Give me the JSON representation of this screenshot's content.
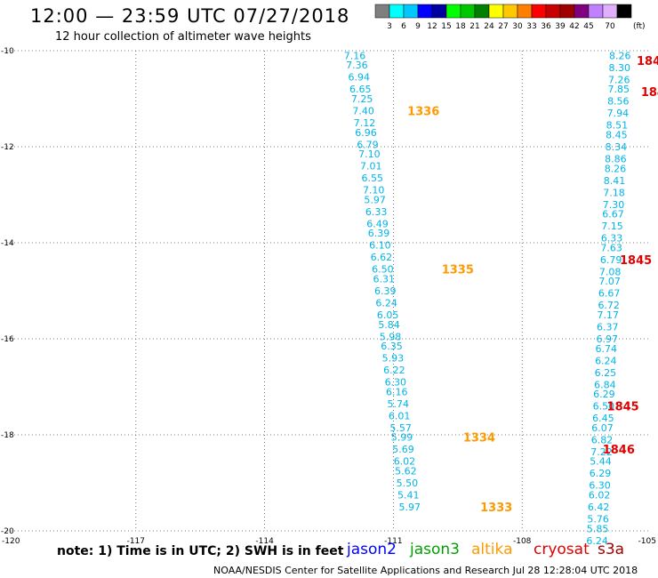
{
  "header": {
    "title": "12:00 — 23:59 UTC 07/27/2018",
    "subtitle": "12 hour collection of altimeter wave heights"
  },
  "legend": {
    "colors": [
      "#7f7f7f",
      "#00ffff",
      "#00c8ff",
      "#0000ff",
      "#0000a0",
      "#00ff00",
      "#00c800",
      "#008000",
      "#ffff00",
      "#ffc800",
      "#ff8000",
      "#ff0000",
      "#c80000",
      "#a00000",
      "#800080",
      "#c080ff",
      "#e0b0ff",
      "#000000"
    ],
    "labels": [
      "3",
      "6",
      "9",
      "12",
      "15",
      "18",
      "21",
      "24",
      "27",
      "30",
      "33",
      "36",
      "39",
      "42",
      "45",
      "70"
    ],
    "unit": "(ft)"
  },
  "footer": {
    "note": "note:  1) Time is in UTC;  2) SWH is in feet",
    "credit": "NOAA/NESDIS Center for Satellite Applications and Research     Jul 28 12:28:04 UTC 2018"
  },
  "satellites": [
    {
      "name": "jason2",
      "color": "#0000ff"
    },
    {
      "name": "jason3",
      "color": "#00a000"
    },
    {
      "name": "altika",
      "color": "#ff9900"
    },
    {
      "name": "cryosat",
      "color": "#e00000"
    },
    {
      "name": "s3a",
      "color": "#a00000"
    }
  ],
  "chart_data": {
    "type": "scatter",
    "xlim": [
      -120,
      -105
    ],
    "ylim": [
      -20,
      -10
    ],
    "x_ticks": [
      "-120",
      "-117",
      "-114",
      "-111",
      "-108",
      "-105"
    ],
    "y_ticks": [
      "-10",
      "-12",
      "-14",
      "-16",
      "-18",
      "-20"
    ],
    "grid": true,
    "series": [
      {
        "color": "#00b4e8",
        "points": [
          {
            "x": -111.9,
            "y": -10.1,
            "label": "7.16"
          },
          {
            "x": -111.85,
            "y": -10.3,
            "label": "7.36"
          },
          {
            "x": -111.8,
            "y": -10.55,
            "label": "6.94"
          },
          {
            "x": -111.77,
            "y": -10.8,
            "label": "6.65"
          },
          {
            "x": -111.73,
            "y": -11.0,
            "label": "7.25"
          },
          {
            "x": -111.7,
            "y": -11.25,
            "label": "7.40"
          },
          {
            "x": -111.67,
            "y": -11.5,
            "label": "7.12"
          },
          {
            "x": -111.64,
            "y": -11.7,
            "label": "6.96"
          },
          {
            "x": -111.6,
            "y": -11.95,
            "label": "6.79"
          },
          {
            "x": -111.56,
            "y": -12.15,
            "label": "7.10"
          },
          {
            "x": -111.52,
            "y": -12.4,
            "label": "7.01"
          },
          {
            "x": -111.49,
            "y": -12.65,
            "label": "6.55"
          },
          {
            "x": -111.46,
            "y": -12.9,
            "label": "7.10"
          },
          {
            "x": -111.43,
            "y": -13.1,
            "label": "5.97"
          },
          {
            "x": -111.4,
            "y": -13.35,
            "label": "6.33"
          },
          {
            "x": -111.37,
            "y": -13.6,
            "label": "6.49"
          },
          {
            "x": -111.34,
            "y": -13.8,
            "label": "6.39"
          },
          {
            "x": -111.31,
            "y": -14.05,
            "label": "6.10"
          },
          {
            "x": -111.28,
            "y": -14.3,
            "label": "6.62"
          },
          {
            "x": -111.25,
            "y": -14.55,
            "label": "6.50"
          },
          {
            "x": -111.22,
            "y": -14.75,
            "label": "6.31"
          },
          {
            "x": -111.19,
            "y": -15.0,
            "label": "6.39"
          },
          {
            "x": -111.16,
            "y": -15.25,
            "label": "6.24"
          },
          {
            "x": -111.13,
            "y": -15.5,
            "label": "6.05"
          },
          {
            "x": -111.1,
            "y": -15.7,
            "label": "5.84"
          },
          {
            "x": -111.07,
            "y": -15.95,
            "label": "5.98"
          },
          {
            "x": -111.04,
            "y": -16.15,
            "label": "6.35"
          },
          {
            "x": -111.01,
            "y": -16.4,
            "label": "5.93"
          },
          {
            "x": -110.98,
            "y": -16.65,
            "label": "6.22"
          },
          {
            "x": -110.95,
            "y": -16.9,
            "label": "6.30"
          },
          {
            "x": -110.92,
            "y": -17.1,
            "label": "6.16"
          },
          {
            "x": -110.89,
            "y": -17.35,
            "label": "5.74"
          },
          {
            "x": -110.86,
            "y": -17.6,
            "label": "6.01"
          },
          {
            "x": -110.83,
            "y": -17.85,
            "label": "5.57"
          },
          {
            "x": -110.8,
            "y": -18.05,
            "label": "5.99"
          },
          {
            "x": -110.77,
            "y": -18.3,
            "label": "5.69"
          },
          {
            "x": -110.74,
            "y": -18.55,
            "label": "6.02"
          },
          {
            "x": -110.71,
            "y": -18.75,
            "label": "5.62"
          },
          {
            "x": -110.68,
            "y": -19.0,
            "label": "5.50"
          },
          {
            "x": -110.65,
            "y": -19.25,
            "label": "5.41"
          },
          {
            "x": -110.62,
            "y": -19.5,
            "label": "5.97"
          },
          {
            "x": -105.72,
            "y": -10.1,
            "label": "8.26"
          },
          {
            "x": -105.73,
            "y": -10.35,
            "label": "8.30"
          },
          {
            "x": -105.74,
            "y": -10.6,
            "label": "7.26"
          },
          {
            "x": -105.75,
            "y": -10.8,
            "label": "7.85"
          },
          {
            "x": -105.76,
            "y": -11.05,
            "label": "8.56"
          },
          {
            "x": -105.77,
            "y": -11.3,
            "label": "7.94"
          },
          {
            "x": -105.79,
            "y": -11.55,
            "label": "8.51"
          },
          {
            "x": -105.8,
            "y": -11.75,
            "label": "8.45"
          },
          {
            "x": -105.81,
            "y": -12.0,
            "label": "8.34"
          },
          {
            "x": -105.82,
            "y": -12.25,
            "label": "8.86"
          },
          {
            "x": -105.83,
            "y": -12.45,
            "label": "8.26"
          },
          {
            "x": -105.85,
            "y": -12.7,
            "label": "8.41"
          },
          {
            "x": -105.86,
            "y": -12.95,
            "label": "7.18"
          },
          {
            "x": -105.87,
            "y": -13.2,
            "label": "7.30"
          },
          {
            "x": -105.88,
            "y": -13.4,
            "label": "6.67"
          },
          {
            "x": -105.9,
            "y": -13.65,
            "label": "7.15"
          },
          {
            "x": -105.91,
            "y": -13.9,
            "label": "6.33"
          },
          {
            "x": -105.92,
            "y": -14.1,
            "label": "7.63"
          },
          {
            "x": -105.93,
            "y": -14.35,
            "label": "6.79"
          },
          {
            "x": -105.95,
            "y": -14.6,
            "label": "7.08"
          },
          {
            "x": -105.96,
            "y": -14.8,
            "label": "7.07"
          },
          {
            "x": -105.97,
            "y": -15.05,
            "label": "6.67"
          },
          {
            "x": -105.98,
            "y": -15.3,
            "label": "6.72"
          },
          {
            "x": -106.0,
            "y": -15.5,
            "label": "7.17"
          },
          {
            "x": -106.01,
            "y": -15.75,
            "label": "6.37"
          },
          {
            "x": -106.02,
            "y": -16.0,
            "label": "6.97"
          },
          {
            "x": -106.04,
            "y": -16.2,
            "label": "6.74"
          },
          {
            "x": -106.05,
            "y": -16.45,
            "label": "6.24"
          },
          {
            "x": -106.06,
            "y": -16.7,
            "label": "6.25"
          },
          {
            "x": -106.07,
            "y": -16.95,
            "label": "6.84"
          },
          {
            "x": -106.09,
            "y": -17.15,
            "label": "6.29"
          },
          {
            "x": -106.1,
            "y": -17.4,
            "label": "6.50"
          },
          {
            "x": -106.11,
            "y": -17.65,
            "label": "6.45"
          },
          {
            "x": -106.13,
            "y": -17.85,
            "label": "6.07"
          },
          {
            "x": -106.14,
            "y": -18.1,
            "label": "6.82"
          },
          {
            "x": -106.15,
            "y": -18.35,
            "label": "7.22"
          },
          {
            "x": -106.17,
            "y": -18.55,
            "label": "5.44"
          },
          {
            "x": -106.18,
            "y": -18.8,
            "label": "6.29"
          },
          {
            "x": -106.19,
            "y": -19.05,
            "label": "6.30"
          },
          {
            "x": -106.2,
            "y": -19.25,
            "label": "6.02"
          },
          {
            "x": -106.22,
            "y": -19.5,
            "label": "6.42"
          },
          {
            "x": -106.23,
            "y": -19.75,
            "label": "5.76"
          },
          {
            "x": -106.24,
            "y": -19.95,
            "label": "5.85"
          },
          {
            "x": -106.25,
            "y": -20.2,
            "label": "6.24"
          }
        ]
      }
    ],
    "time_labels": [
      {
        "x": -110.3,
        "y": -11.25,
        "label": "1336",
        "color": "#ff9900"
      },
      {
        "x": -109.5,
        "y": -14.55,
        "label": "1335",
        "color": "#ff9900"
      },
      {
        "x": -109.0,
        "y": -18.05,
        "label": "1334",
        "color": "#ff9900"
      },
      {
        "x": -108.6,
        "y": -19.5,
        "label": "1333",
        "color": "#ff9900"
      },
      {
        "x": -105.05,
        "y": -10.2,
        "label": "184",
        "color": "#e00000"
      },
      {
        "x": -104.95,
        "y": -10.85,
        "label": "184",
        "color": "#e00000"
      },
      {
        "x": -105.35,
        "y": -14.35,
        "label": "1845",
        "color": "#e00000"
      },
      {
        "x": -105.65,
        "y": -17.4,
        "label": "1845",
        "color": "#e00000"
      },
      {
        "x": -105.75,
        "y": -18.3,
        "label": "1846",
        "color": "#e00000"
      }
    ]
  }
}
